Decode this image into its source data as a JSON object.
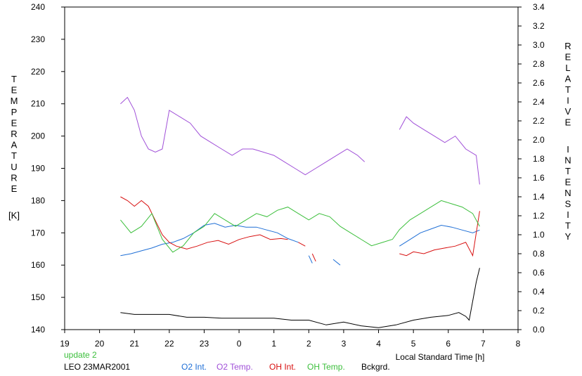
{
  "chart_data": {
    "type": "line",
    "x_unit_label": "Local Standard Time [h]",
    "x_ticks": [
      "19",
      "20",
      "21",
      "22",
      "23",
      "0",
      "1",
      "2",
      "3",
      "4",
      "5",
      "6",
      "7",
      "8"
    ],
    "x_range": [
      19,
      32
    ],
    "y_left": {
      "title_letters": [
        "T",
        "E",
        "M",
        "P",
        "E",
        "R",
        "A",
        "T",
        "U",
        "R",
        "E"
      ],
      "unit": "[K]",
      "range": [
        140,
        240
      ],
      "ticks": [
        "140",
        "150",
        "160",
        "170",
        "180",
        "190",
        "200",
        "210",
        "220",
        "230",
        "240"
      ]
    },
    "y_right": {
      "title_word1": [
        "R",
        "E",
        "L",
        "A",
        "T",
        "I",
        "V",
        "E"
      ],
      "title_word2": [
        "I",
        "N",
        "T",
        "E",
        "N",
        "S",
        "I",
        "T",
        "Y"
      ],
      "range": [
        0.0,
        3.4
      ],
      "ticks": [
        "0.0",
        "0.2",
        "0.4",
        "0.6",
        "0.8",
        "1.0",
        "1.2",
        "1.4",
        "1.6",
        "1.8",
        "2.0",
        "2.2",
        "2.4",
        "2.6",
        "2.8",
        "3.0",
        "3.2",
        "3.4"
      ]
    },
    "update_note": "update 2",
    "station_date": "LEO 23MAR2001",
    "series": [
      {
        "name": "O2 Int.",
        "color": "#1f6fd6",
        "axis": "right",
        "segments": [
          {
            "x": [
              20.6,
              20.9,
              21.2,
              21.5,
              21.8,
              22.1,
              22.4,
              22.7,
              23.0,
              23.3,
              23.6,
              23.9,
              24.2,
              24.5,
              24.8,
              25.1,
              25.4,
              25.7
            ],
            "y": [
              0.78,
              0.8,
              0.83,
              0.86,
              0.9,
              0.92,
              0.96,
              1.02,
              1.1,
              1.12,
              1.08,
              1.1,
              1.08,
              1.08,
              1.05,
              1.02,
              0.96,
              0.92
            ]
          },
          {
            "x": [
              26.0,
              26.1
            ],
            "y": [
              0.78,
              0.7
            ]
          },
          {
            "x": [
              26.7,
              26.9
            ],
            "y": [
              0.74,
              0.68
            ]
          },
          {
            "x": [
              28.6,
              28.9,
              29.2,
              29.5,
              29.8,
              30.1,
              30.4,
              30.7,
              30.9
            ],
            "y": [
              0.88,
              0.95,
              1.02,
              1.06,
              1.1,
              1.08,
              1.05,
              1.02,
              1.05
            ]
          }
        ]
      },
      {
        "name": "O2 Temp.",
        "color": "#a050d8",
        "axis": "left",
        "segments": [
          {
            "x": [
              20.6,
              20.8,
              21.0,
              21.2,
              21.4,
              21.6,
              21.8,
              22.0,
              22.3,
              22.6,
              22.9,
              23.2,
              23.5,
              23.8,
              24.1,
              24.4,
              24.7,
              25.0,
              25.3,
              25.6,
              25.9,
              26.2,
              26.5,
              26.8,
              27.1,
              27.4,
              27.6
            ],
            "y": [
              210,
              212,
              208,
              200,
              196,
              195,
              196,
              208,
              206,
              204,
              200,
              198,
              196,
              194,
              196,
              196,
              195,
              194,
              192,
              190,
              188,
              190,
              192,
              194,
              196,
              194,
              192
            ]
          },
          {
            "x": [
              28.6,
              28.8,
              29.0,
              29.3,
              29.6,
              29.9,
              30.2,
              30.5,
              30.8,
              30.9
            ],
            "y": [
              202,
              206,
              204,
              202,
              200,
              198,
              200,
              196,
              194,
              185
            ]
          }
        ]
      },
      {
        "name": "OH Int.",
        "color": "#d81010",
        "axis": "right",
        "segments": [
          {
            "x": [
              20.6,
              20.8,
              21.0,
              21.2,
              21.4,
              21.6,
              21.8,
              22.0,
              22.2,
              22.5,
              22.8,
              23.1,
              23.4,
              23.7,
              24.0,
              24.3,
              24.6,
              24.9,
              25.2,
              25.4
            ],
            "y": [
              1.4,
              1.36,
              1.3,
              1.36,
              1.3,
              1.15,
              1.0,
              0.92,
              0.88,
              0.85,
              0.88,
              0.92,
              0.94,
              0.9,
              0.95,
              0.98,
              1.0,
              0.95,
              0.96,
              0.95
            ]
          },
          {
            "x": [
              25.7,
              25.9
            ],
            "y": [
              0.92,
              0.88
            ]
          },
          {
            "x": [
              26.1,
              26.2
            ],
            "y": [
              0.8,
              0.72
            ]
          },
          {
            "x": [
              28.6,
              28.8,
              29.0,
              29.3,
              29.6,
              29.9,
              30.2,
              30.5,
              30.7,
              30.9
            ],
            "y": [
              0.8,
              0.78,
              0.82,
              0.8,
              0.84,
              0.86,
              0.88,
              0.92,
              0.78,
              1.25
            ]
          }
        ]
      },
      {
        "name": "OH Temp.",
        "color": "#3cbf3c",
        "axis": "left",
        "segments": [
          {
            "x": [
              20.6,
              20.9,
              21.2,
              21.5,
              21.8,
              22.1,
              22.4,
              22.7,
              23.0,
              23.3,
              23.6,
              23.9,
              24.2,
              24.5,
              24.8,
              25.1,
              25.4,
              25.7,
              26.0,
              26.3,
              26.6,
              26.9,
              27.2,
              27.5,
              27.8,
              28.1,
              28.4,
              28.6,
              28.9,
              29.2,
              29.5,
              29.8,
              30.1,
              30.4,
              30.7,
              30.9
            ],
            "y": [
              174,
              170,
              172,
              176,
              168,
              164,
              166,
              170,
              172,
              176,
              174,
              172,
              174,
              176,
              175,
              177,
              178,
              176,
              174,
              176,
              175,
              172,
              170,
              168,
              166,
              167,
              168,
              171,
              174,
              176,
              178,
              180,
              179,
              178,
              176,
              172
            ]
          }
        ]
      },
      {
        "name": "Bckgrd.",
        "color": "#000000",
        "axis": "right",
        "segments": [
          {
            "x": [
              20.6,
              21.0,
              21.5,
              22.0,
              22.5,
              23.0,
              23.5,
              24.0,
              24.5,
              25.0,
              25.5,
              26.0,
              26.5,
              27.0,
              27.5,
              28.0,
              28.5,
              29.0,
              29.5,
              30.0,
              30.3,
              30.5,
              30.6,
              30.7,
              30.8,
              30.9
            ],
            "y": [
              0.18,
              0.16,
              0.16,
              0.16,
              0.13,
              0.13,
              0.12,
              0.12,
              0.12,
              0.12,
              0.1,
              0.1,
              0.05,
              0.08,
              0.04,
              0.02,
              0.05,
              0.1,
              0.13,
              0.15,
              0.18,
              0.14,
              0.1,
              0.3,
              0.5,
              0.65
            ]
          }
        ]
      }
    ]
  }
}
